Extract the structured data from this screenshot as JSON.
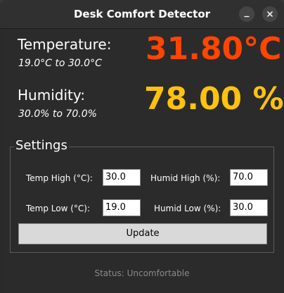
{
  "window": {
    "title": "Desk Comfort Detector",
    "minimize_icon": "minimize-icon",
    "close_icon": "close-icon"
  },
  "temperature": {
    "label": "Temperature:",
    "range": "19.0°C to 30.0°C",
    "value": "31.80°C",
    "color": "#ff4500"
  },
  "humidity": {
    "label": "Humidity:",
    "range": "30.0% to 70.0%",
    "value": "78.00 %",
    "color": "#ffc20e"
  },
  "settings": {
    "title": "Settings",
    "temp_high_label": "Temp High (°C):",
    "temp_high_value": "30.0",
    "humid_high_label": "Humid High (%):",
    "humid_high_value": "70.0",
    "temp_low_label": "Temp Low (°C):",
    "temp_low_value": "19.0",
    "humid_low_label": "Humid Low (%):",
    "humid_low_value": "30.0",
    "update_label": "Update"
  },
  "status": {
    "text": "Status: Uncomfortable"
  }
}
